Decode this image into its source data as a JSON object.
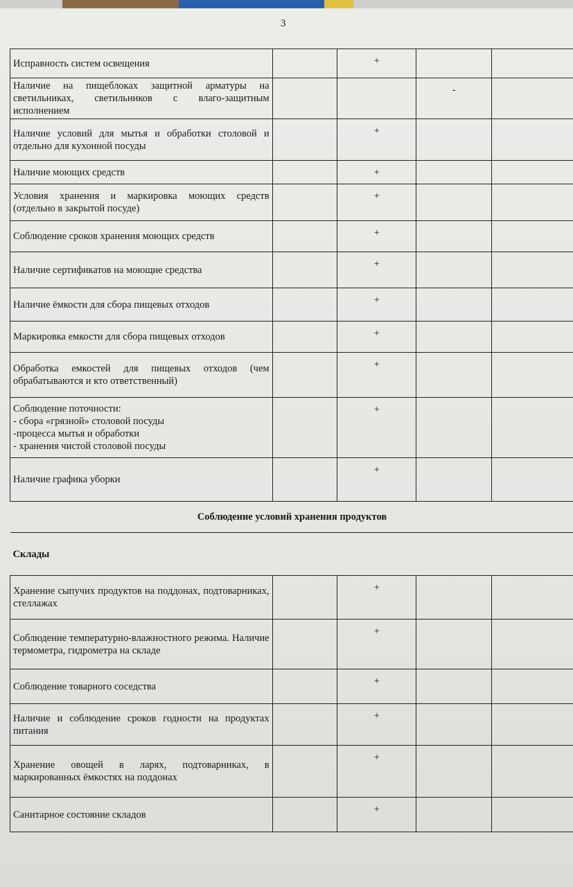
{
  "page_number": "3",
  "rows_top": [
    {
      "text": "Исправность систем  освещения",
      "col2": "+",
      "col3": ""
    },
    {
      "text": "Наличие на пищеблоках защитной арматуры на светильниках, светильников с влаго-защитным исполнением",
      "col2": "",
      "col3": "-"
    },
    {
      "text": "Наличие условий для мытья и обработки столовой и отдельно для кухонной посуды",
      "col2": "+",
      "col3": ""
    },
    {
      "text": "Наличие моющих средств",
      "col2": "+",
      "col3": ""
    },
    {
      "text": "Условия хранения и маркировка моющих средств (отдельно в закрытой посуде)",
      "col2": "+",
      "col3": ""
    },
    {
      "text": "Соблюдение сроков хранения моющих средств",
      "col2": "+",
      "col3": ""
    },
    {
      "text": "Наличие сертификатов на моющие средства",
      "col2": "+",
      "col3": ""
    },
    {
      "text": "Наличие ёмкости для сбора пищевых отходов",
      "col2": "+",
      "col3": ""
    },
    {
      "text": "Маркировка емкости для сбора пищевых отходов",
      "col2": "+",
      "col3": ""
    },
    {
      "text": "Обработка емкостей для пищевых отходов (чем обрабатываются и кто ответственный)",
      "col2": "+",
      "col3": ""
    },
    {
      "text": "Соблюдение поточности:\n- сбора «грязной» столовой посуды\n-процесса мытья и обработки\n- хранения чистой столовой посуды",
      "col2": "+",
      "col3": ""
    },
    {
      "text": "Наличие графика уборки",
      "col2": "+",
      "col3": ""
    }
  ],
  "section_title": "Соблюдение условий хранения продуктов",
  "subsection_title": "Склады",
  "rows_bottom": [
    {
      "text": "Хранение сыпучих продуктов на поддонах, подтоварниках, стеллажах",
      "col2": "+",
      "col3": ""
    },
    {
      "text": "Соблюдение температурно-влажностного режима. Наличие термометра, гидрометра на складе",
      "col2": "+",
      "col3": ""
    },
    {
      "text": "Соблюдение товарного соседства",
      "col2": "+",
      "col3": ""
    },
    {
      "text": "Наличие и соблюдение сроков годности на продуктах питания",
      "col2": "+",
      "col3": ""
    },
    {
      "text": "Хранение овощей в ларях, подтоварниках, в маркированных ёмкостях на поддонах",
      "col2": "+",
      "col3": ""
    },
    {
      "text": "Санитарное состояние складов",
      "col2": "+",
      "col3": ""
    }
  ]
}
